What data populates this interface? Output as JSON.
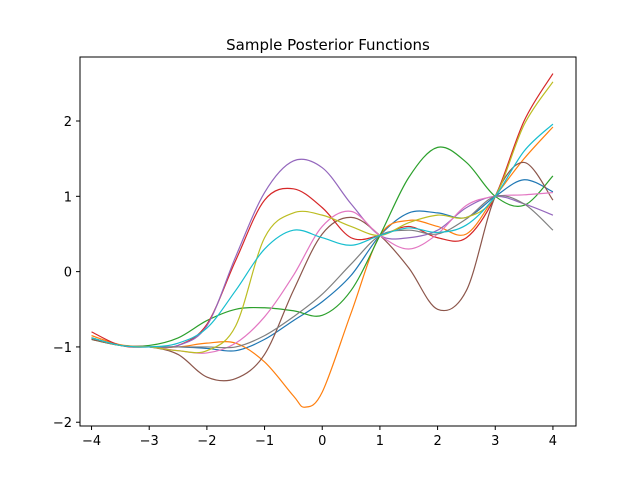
{
  "chart_data": {
    "type": "line",
    "title": "Sample Posterior Functions",
    "xlabel": "",
    "ylabel": "",
    "xlim": [
      -4.2,
      4.4
    ],
    "ylim": [
      -2.05,
      2.85
    ],
    "grid": false,
    "xticks": [
      -4,
      -3,
      -2,
      -1,
      0,
      1,
      2,
      3,
      4
    ],
    "xtick_labels": [
      "−4",
      "−3",
      "−2",
      "−1",
      "0",
      "1",
      "2",
      "3",
      "4"
    ],
    "yticks": [
      -2,
      -1,
      0,
      1,
      2
    ],
    "ytick_labels": [
      "−2",
      "−1",
      "0",
      "1",
      "2"
    ],
    "series": [
      {
        "color": "#1f77b4",
        "points": [
          [
            -4,
            -0.88
          ],
          [
            -3.5,
            -0.98
          ],
          [
            -3,
            -1.0
          ],
          [
            -2.5,
            -1.0
          ],
          [
            -2,
            -1.02
          ],
          [
            -1.5,
            -1.05
          ],
          [
            -1,
            -0.9
          ],
          [
            -0.5,
            -0.65
          ],
          [
            0,
            -0.4
          ],
          [
            0.5,
            -0.05
          ],
          [
            1,
            0.48
          ],
          [
            1.5,
            0.78
          ],
          [
            2,
            0.78
          ],
          [
            2.5,
            0.72
          ],
          [
            3,
            1.0
          ],
          [
            3.5,
            1.22
          ],
          [
            4,
            1.06
          ]
        ]
      },
      {
        "color": "#ff7f0e",
        "points": [
          [
            -4,
            -0.85
          ],
          [
            -3.5,
            -0.97
          ],
          [
            -3,
            -1.0
          ],
          [
            -2.5,
            -1.0
          ],
          [
            -2,
            -0.95
          ],
          [
            -1.5,
            -0.95
          ],
          [
            -1,
            -1.2
          ],
          [
            -0.5,
            -1.65
          ],
          [
            -0.3,
            -1.8
          ],
          [
            0,
            -1.6
          ],
          [
            0.5,
            -0.55
          ],
          [
            1,
            0.48
          ],
          [
            1.5,
            0.68
          ],
          [
            2,
            0.6
          ],
          [
            2.5,
            0.5
          ],
          [
            3,
            1.0
          ],
          [
            3.5,
            1.5
          ],
          [
            4,
            1.92
          ]
        ]
      },
      {
        "color": "#2ca02c",
        "points": [
          [
            -4,
            -0.9
          ],
          [
            -3.5,
            -0.98
          ],
          [
            -3,
            -0.98
          ],
          [
            -2.5,
            -0.88
          ],
          [
            -2,
            -0.65
          ],
          [
            -1.5,
            -0.5
          ],
          [
            -1,
            -0.48
          ],
          [
            -0.5,
            -0.52
          ],
          [
            0,
            -0.58
          ],
          [
            0.5,
            -0.25
          ],
          [
            1,
            0.48
          ],
          [
            1.5,
            1.25
          ],
          [
            2,
            1.65
          ],
          [
            2.5,
            1.45
          ],
          [
            3,
            1.0
          ],
          [
            3.5,
            0.88
          ],
          [
            4,
            1.27
          ]
        ]
      },
      {
        "color": "#d62728",
        "points": [
          [
            -4,
            -0.8
          ],
          [
            -3.5,
            -0.98
          ],
          [
            -3,
            -1.0
          ],
          [
            -2.5,
            -0.98
          ],
          [
            -2,
            -0.7
          ],
          [
            -1.5,
            0.15
          ],
          [
            -1,
            0.95
          ],
          [
            -0.5,
            1.1
          ],
          [
            0,
            0.85
          ],
          [
            0.5,
            0.45
          ],
          [
            1,
            0.48
          ],
          [
            1.5,
            0.6
          ],
          [
            2,
            0.45
          ],
          [
            2.5,
            0.45
          ],
          [
            3,
            1.0
          ],
          [
            3.5,
            2.0
          ],
          [
            4,
            2.63
          ]
        ]
      },
      {
        "color": "#9467bd",
        "points": [
          [
            -4,
            -0.88
          ],
          [
            -3.5,
            -0.98
          ],
          [
            -3,
            -1.0
          ],
          [
            -2.5,
            -0.98
          ],
          [
            -2,
            -0.72
          ],
          [
            -1.5,
            0.2
          ],
          [
            -1,
            1.05
          ],
          [
            -0.5,
            1.47
          ],
          [
            0,
            1.38
          ],
          [
            0.5,
            0.9
          ],
          [
            1,
            0.48
          ],
          [
            1.5,
            0.45
          ],
          [
            2,
            0.55
          ],
          [
            2.5,
            0.85
          ],
          [
            3,
            1.0
          ],
          [
            3.5,
            0.9
          ],
          [
            4,
            0.75
          ]
        ]
      },
      {
        "color": "#8c564b",
        "points": [
          [
            -4,
            -0.9
          ],
          [
            -3.5,
            -0.98
          ],
          [
            -3,
            -1.0
          ],
          [
            -2.5,
            -1.1
          ],
          [
            -2,
            -1.4
          ],
          [
            -1.5,
            -1.42
          ],
          [
            -1,
            -1.1
          ],
          [
            -0.5,
            -0.25
          ],
          [
            0,
            0.5
          ],
          [
            0.5,
            0.72
          ],
          [
            1,
            0.48
          ],
          [
            1.5,
            0.05
          ],
          [
            2,
            -0.5
          ],
          [
            2.5,
            -0.25
          ],
          [
            3,
            1.0
          ],
          [
            3.5,
            1.45
          ],
          [
            4,
            0.95
          ]
        ]
      },
      {
        "color": "#e377c2",
        "points": [
          [
            -4,
            -0.88
          ],
          [
            -3.5,
            -0.98
          ],
          [
            -3,
            -1.0
          ],
          [
            -2.5,
            -1.05
          ],
          [
            -2,
            -1.08
          ],
          [
            -1.5,
            -0.95
          ],
          [
            -1,
            -0.6
          ],
          [
            -0.5,
            -0.05
          ],
          [
            0,
            0.6
          ],
          [
            0.5,
            0.8
          ],
          [
            1,
            0.48
          ],
          [
            1.5,
            0.3
          ],
          [
            2,
            0.5
          ],
          [
            2.5,
            0.88
          ],
          [
            3,
            1.0
          ],
          [
            3.5,
            1.02
          ],
          [
            4,
            1.05
          ]
        ]
      },
      {
        "color": "#7f7f7f",
        "points": [
          [
            -4,
            -0.88
          ],
          [
            -3.5,
            -0.98
          ],
          [
            -3,
            -1.0
          ],
          [
            -2.5,
            -1.0
          ],
          [
            -2,
            -1.0
          ],
          [
            -1.5,
            -1.0
          ],
          [
            -1,
            -0.85
          ],
          [
            -0.5,
            -0.6
          ],
          [
            0,
            -0.3
          ],
          [
            0.5,
            0.1
          ],
          [
            1,
            0.48
          ],
          [
            1.5,
            0.55
          ],
          [
            2,
            0.5
          ],
          [
            2.5,
            0.7
          ],
          [
            3,
            1.0
          ],
          [
            3.5,
            0.9
          ],
          [
            4,
            0.55
          ]
        ]
      },
      {
        "color": "#bcbd22",
        "points": [
          [
            -4,
            -0.88
          ],
          [
            -3.5,
            -0.98
          ],
          [
            -3,
            -1.0
          ],
          [
            -2.5,
            -1.05
          ],
          [
            -2,
            -1.05
          ],
          [
            -1.5,
            -0.72
          ],
          [
            -1,
            0.45
          ],
          [
            -0.5,
            0.78
          ],
          [
            0,
            0.75
          ],
          [
            0.5,
            0.6
          ],
          [
            1,
            0.48
          ],
          [
            1.5,
            0.65
          ],
          [
            2,
            0.75
          ],
          [
            2.5,
            0.72
          ],
          [
            3,
            1.0
          ],
          [
            3.5,
            1.95
          ],
          [
            4,
            2.52
          ]
        ]
      },
      {
        "color": "#17becf",
        "points": [
          [
            -4,
            -0.88
          ],
          [
            -3.5,
            -0.98
          ],
          [
            -3,
            -1.0
          ],
          [
            -2.5,
            -0.95
          ],
          [
            -2,
            -0.75
          ],
          [
            -1.5,
            -0.25
          ],
          [
            -1,
            0.3
          ],
          [
            -0.5,
            0.55
          ],
          [
            0,
            0.45
          ],
          [
            0.5,
            0.35
          ],
          [
            1,
            0.48
          ],
          [
            1.5,
            0.58
          ],
          [
            2,
            0.52
          ],
          [
            2.5,
            0.62
          ],
          [
            3,
            1.0
          ],
          [
            3.5,
            1.6
          ],
          [
            4,
            1.96
          ]
        ]
      }
    ]
  }
}
